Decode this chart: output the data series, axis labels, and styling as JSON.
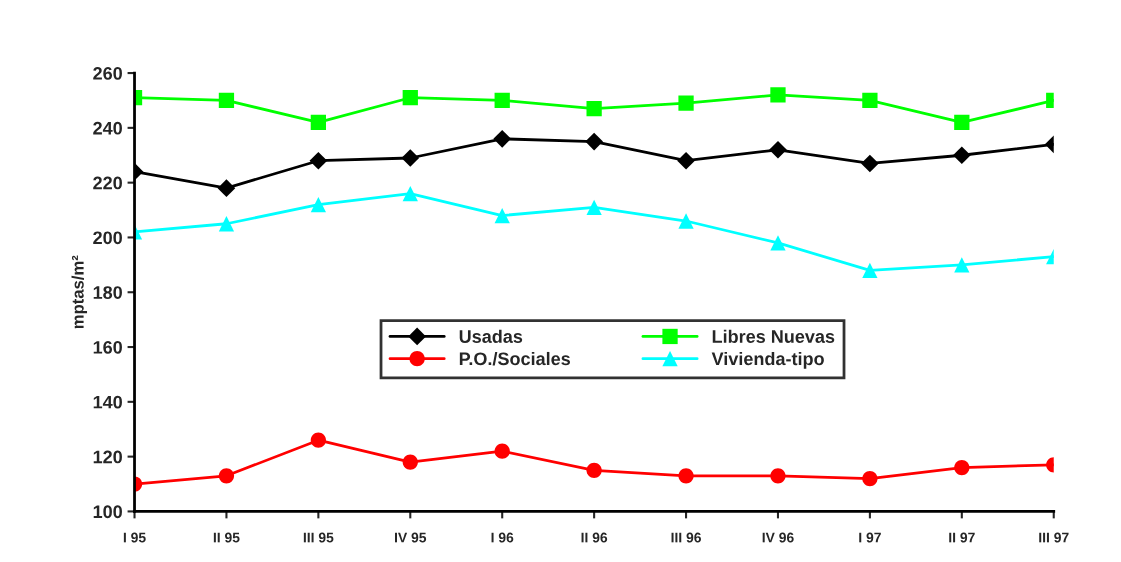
{
  "chart_data": {
    "type": "line",
    "ylabel": "mptas/m²",
    "categories": [
      "I 95",
      "II 95",
      "III 95",
      "IV 95",
      "I 96",
      "II 96",
      "III 96",
      "IV 96",
      "I 97",
      "II 97",
      "III 97"
    ],
    "series": [
      {
        "name": "Usadas",
        "color": "#000000",
        "marker": "diamond",
        "values": [
          224,
          218,
          228,
          229,
          236,
          235,
          228,
          232,
          227,
          230,
          234
        ]
      },
      {
        "name": "P.O./Sociales",
        "color": "#ff0000",
        "marker": "circle",
        "values": [
          110,
          113,
          126,
          118,
          122,
          115,
          113,
          113,
          112,
          116,
          117
        ]
      },
      {
        "name": "Libres Nuevas",
        "color": "#00ff00",
        "marker": "square",
        "values": [
          251,
          250,
          242,
          251,
          250,
          247,
          249,
          252,
          250,
          242,
          250
        ]
      },
      {
        "name": "Vivienda-tipo",
        "color": "#00ffff",
        "marker": "triangle",
        "values": [
          202,
          205,
          212,
          216,
          208,
          211,
          206,
          198,
          188,
          190,
          193
        ]
      }
    ],
    "ylim": [
      100,
      260
    ],
    "yticks": [
      100,
      120,
      140,
      160,
      180,
      200,
      220,
      240,
      260
    ],
    "grid": false,
    "legend": "center",
    "line_style": "solid"
  }
}
